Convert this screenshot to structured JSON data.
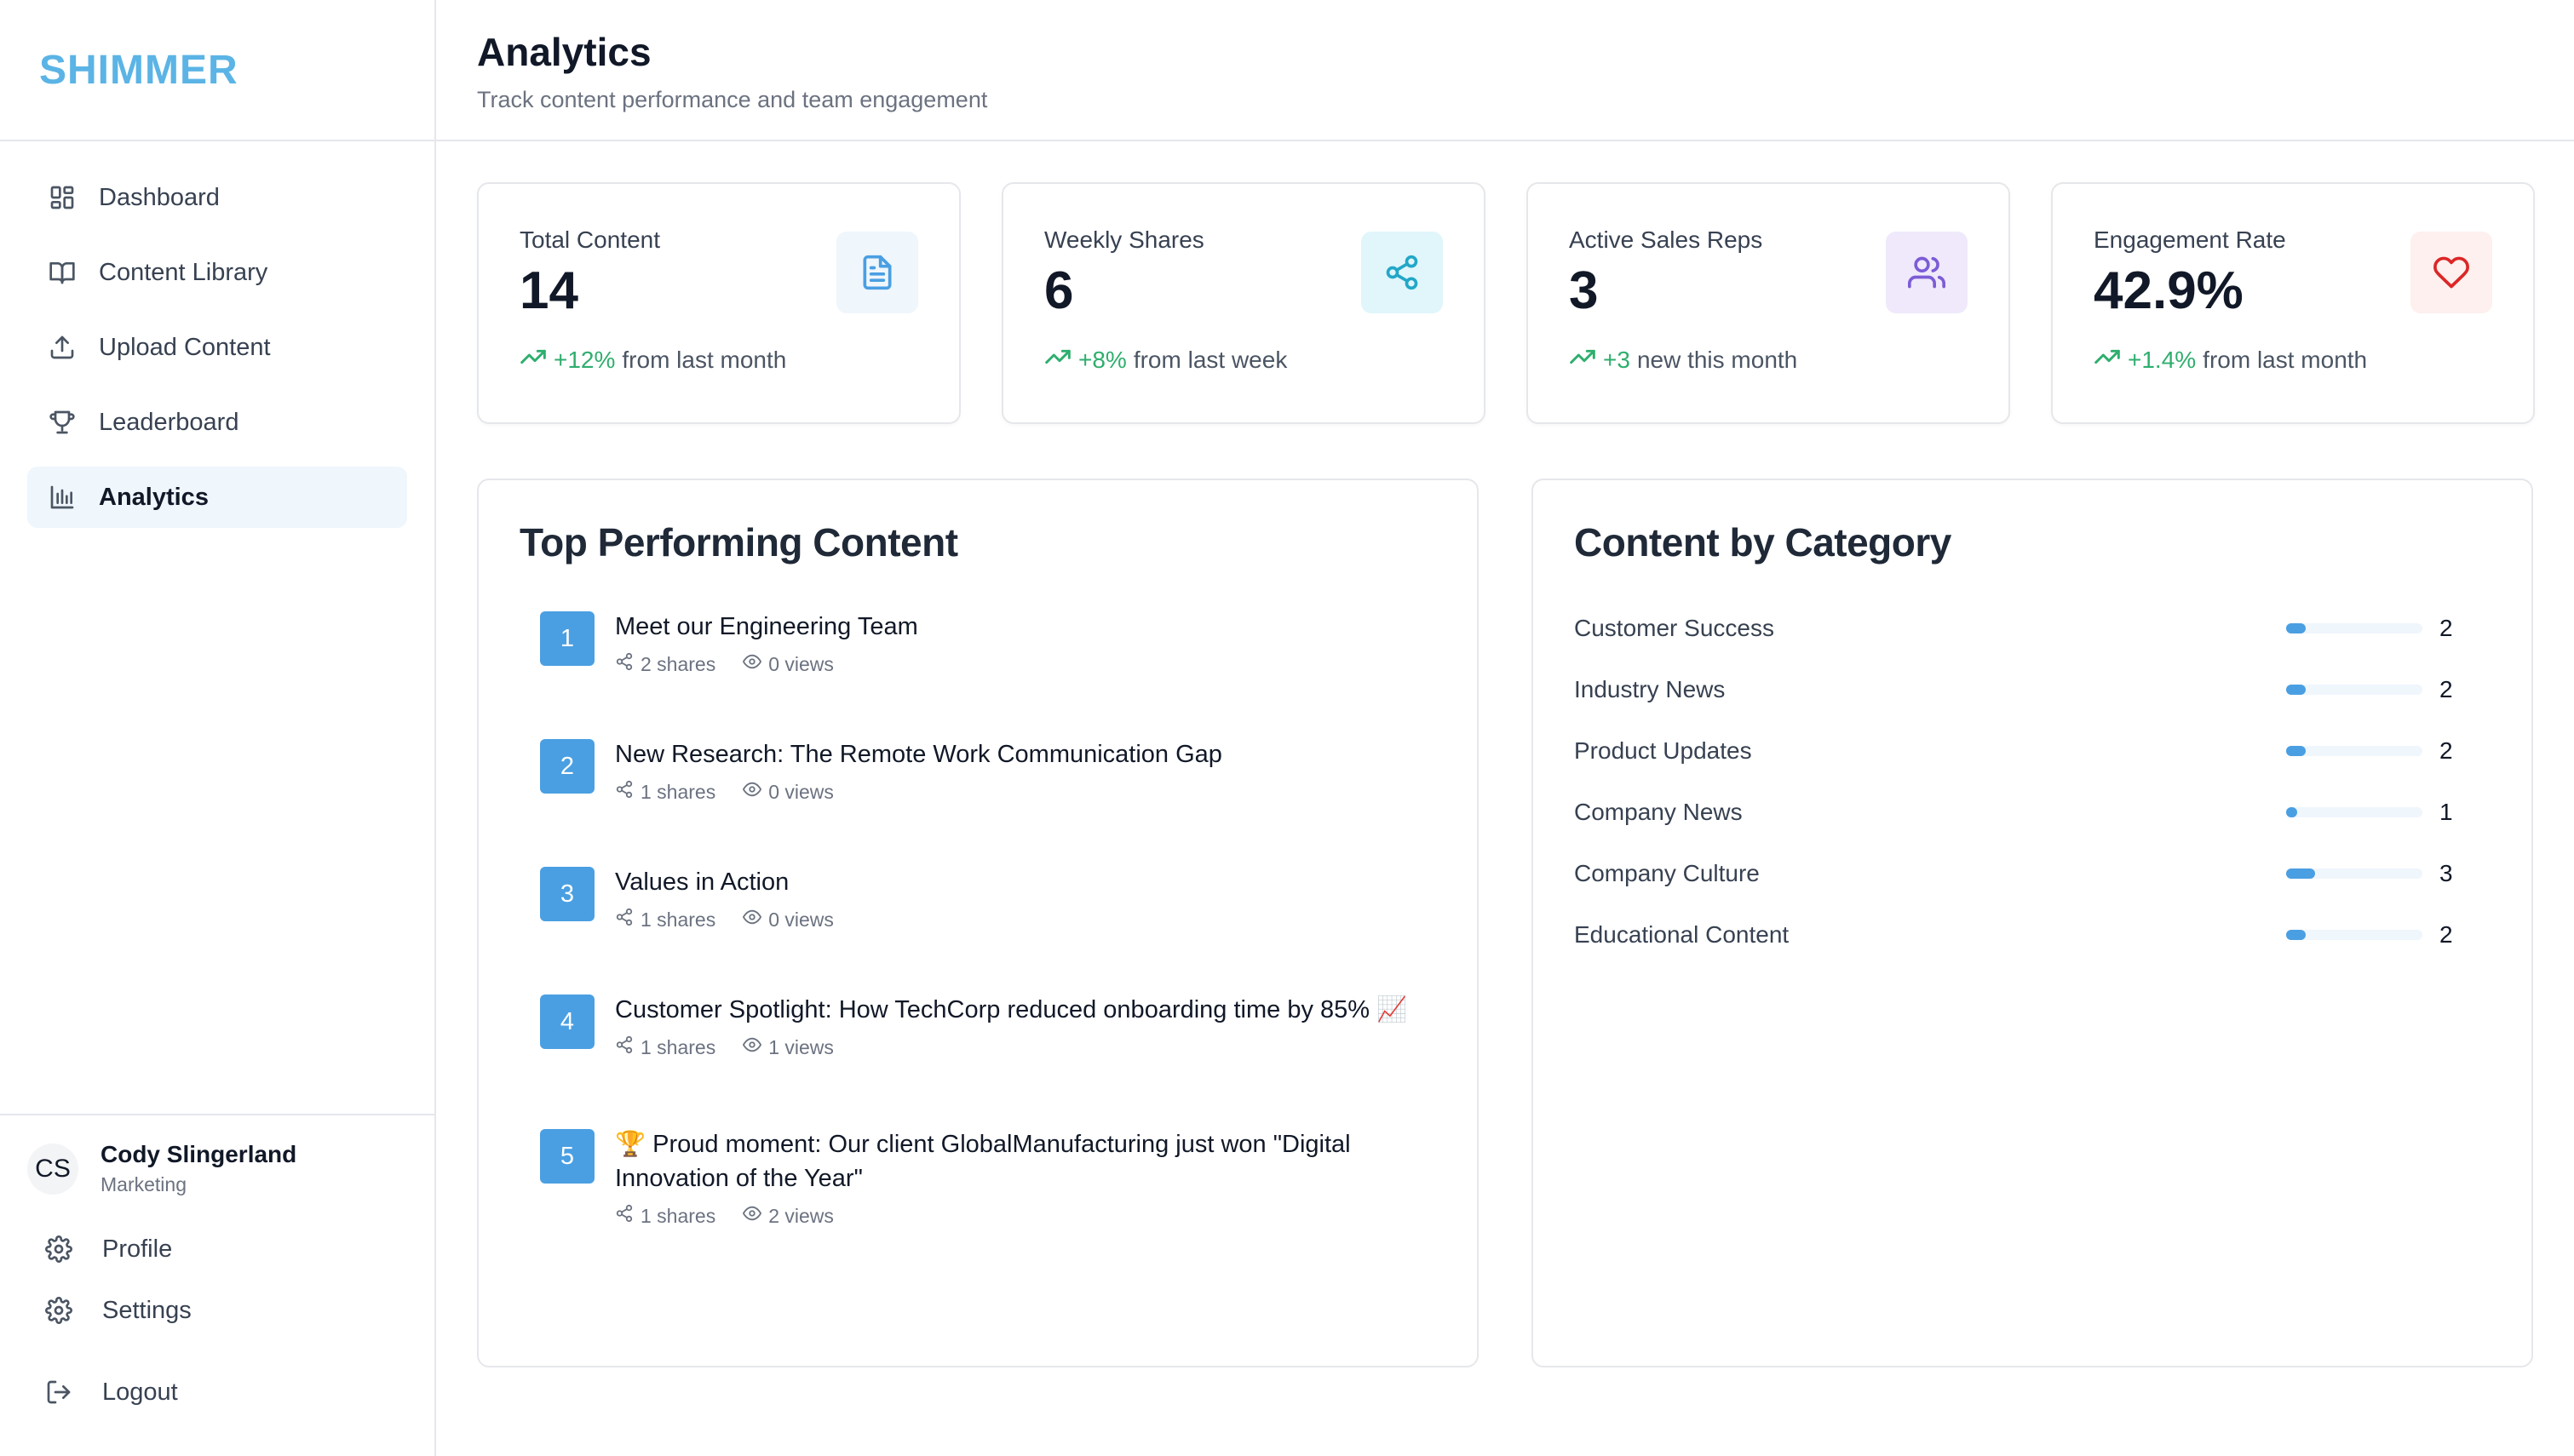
{
  "app": {
    "logo": "SHIMMER"
  },
  "sidebar": {
    "items": [
      {
        "label": "Dashboard",
        "icon": "grid-icon"
      },
      {
        "label": "Content Library",
        "icon": "book-icon"
      },
      {
        "label": "Upload Content",
        "icon": "upload-icon"
      },
      {
        "label": "Leaderboard",
        "icon": "trophy-icon"
      },
      {
        "label": "Analytics",
        "icon": "bar-chart-icon",
        "active": true
      }
    ],
    "user": {
      "initials": "CS",
      "name": "Cody Slingerland",
      "role": "Marketing"
    },
    "footer": {
      "profile": "Profile",
      "settings": "Settings",
      "logout": "Logout"
    }
  },
  "header": {
    "title": "Analytics",
    "subtitle": "Track content performance and team engagement"
  },
  "stats": [
    {
      "label": "Total Content",
      "value": "14",
      "trend": "+12%",
      "trend_text": "from last month",
      "icon": "document-icon",
      "icon_color": "#4a9fe2",
      "icon_bg": "#eff6fc"
    },
    {
      "label": "Weekly Shares",
      "value": "6",
      "trend": "+8%",
      "trend_text": "from last week",
      "icon": "share-icon",
      "icon_color": "#22a7c7",
      "icon_bg": "#e0f6fb"
    },
    {
      "label": "Active Sales Reps",
      "value": "3",
      "trend": "+3",
      "trend_text": "new this month",
      "icon": "users-icon",
      "icon_color": "#7c5cd6",
      "icon_bg": "#efe9fb"
    },
    {
      "label": "Engagement Rate",
      "value": "42.9%",
      "trend": "+1.4%",
      "trend_text": "from last month",
      "icon": "heart-icon",
      "icon_color": "#dc2626",
      "icon_bg": "#fdf0ee"
    }
  ],
  "top_content": {
    "title": "Top Performing Content",
    "items": [
      {
        "rank": "1",
        "title": "Meet our Engineering Team",
        "shares": "2 shares",
        "views": "0 views"
      },
      {
        "rank": "2",
        "title": "New Research: The Remote Work Communication Gap",
        "shares": "1 shares",
        "views": "0 views"
      },
      {
        "rank": "3",
        "title": "Values in Action",
        "shares": "1 shares",
        "views": "0 views"
      },
      {
        "rank": "4",
        "title": "Customer Spotlight: How TechCorp reduced onboarding time by 85% 📈",
        "shares": "1 shares",
        "views": "1 views"
      },
      {
        "rank": "5",
        "title": "🏆 Proud moment: Our client GlobalManufacturing just won \"Digital Innovation of the Year\"",
        "shares": "1 shares",
        "views": "2 views"
      }
    ]
  },
  "categories": {
    "title": "Content by Category",
    "max": 14,
    "items": [
      {
        "name": "Customer Success",
        "count": 2
      },
      {
        "name": "Industry News",
        "count": 2
      },
      {
        "name": "Product Updates",
        "count": 2
      },
      {
        "name": "Company News",
        "count": 1
      },
      {
        "name": "Company Culture",
        "count": 3
      },
      {
        "name": "Educational Content",
        "count": 2
      }
    ]
  }
}
